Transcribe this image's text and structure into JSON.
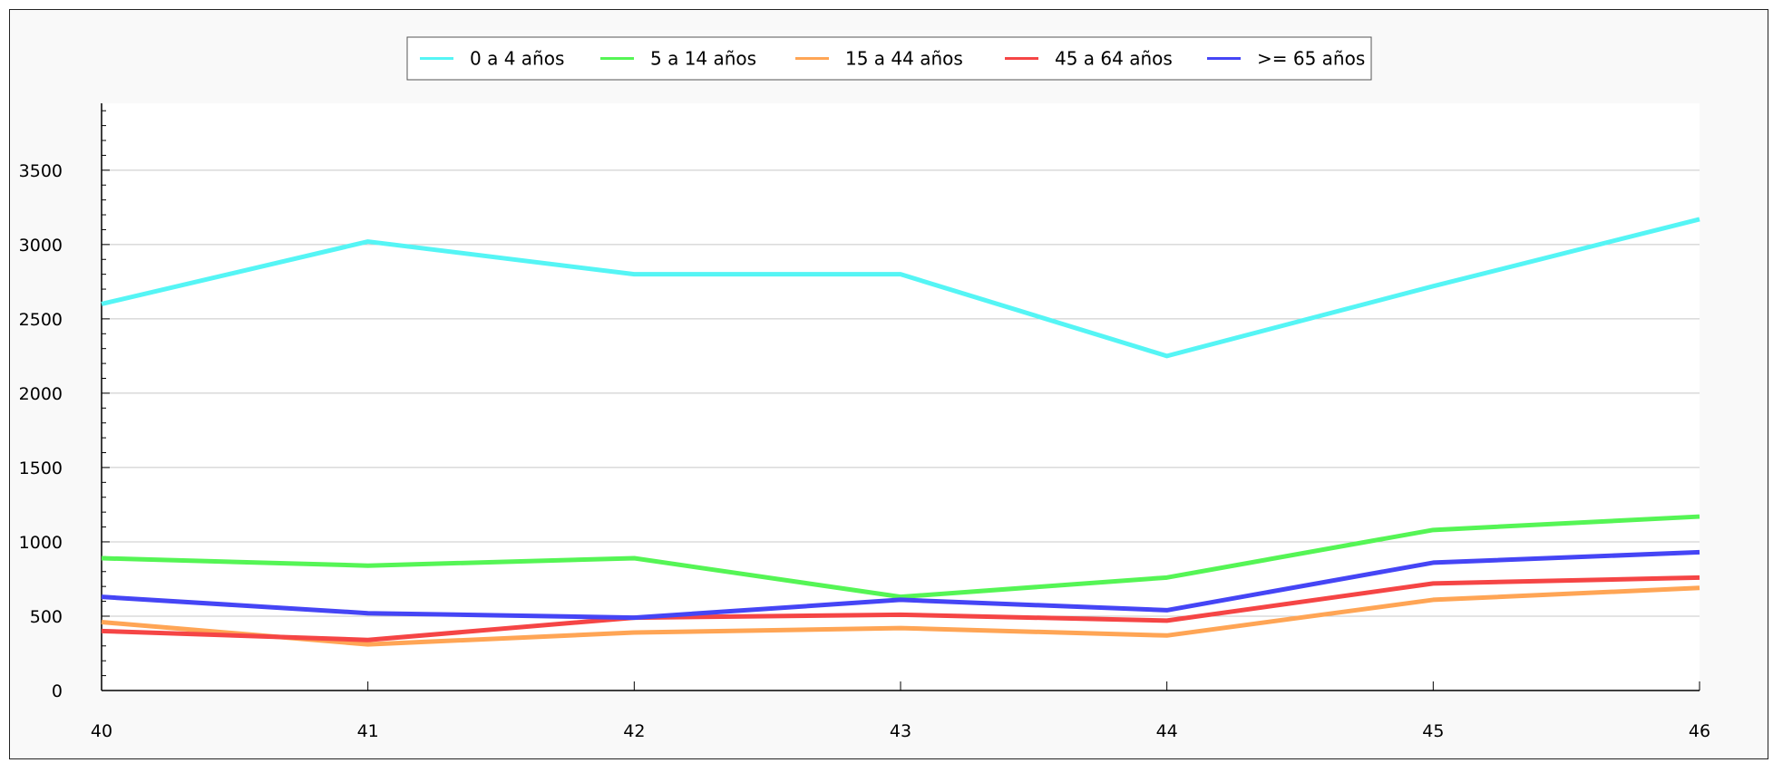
{
  "chart_data": {
    "type": "line",
    "title": "",
    "xlabel": "",
    "ylabel": "",
    "x": [
      40,
      41,
      42,
      43,
      44,
      45,
      46
    ],
    "xlim": [
      40,
      46
    ],
    "ylim": [
      0,
      3950
    ],
    "y_ticks": [
      0,
      500,
      1000,
      1500,
      2000,
      2500,
      3000,
      3500
    ],
    "grid": true,
    "legend_position": "top",
    "series": [
      {
        "name": "0 a 4 años",
        "color": "#55f5f5",
        "values": [
          2600,
          3020,
          2800,
          2800,
          2250,
          2720,
          3170
        ]
      },
      {
        "name": "5 a 14 años",
        "color": "#55f555",
        "values": [
          890,
          840,
          890,
          630,
          760,
          1080,
          1170
        ]
      },
      {
        "name": "15 a 44 años",
        "color": "#ffa555",
        "values": [
          460,
          310,
          390,
          420,
          370,
          610,
          690
        ]
      },
      {
        "name": "45 a 64 años",
        "color": "#f54545",
        "values": [
          400,
          340,
          490,
          510,
          470,
          720,
          760
        ]
      },
      {
        "name": ">= 65 años",
        "color": "#4545f5",
        "values": [
          630,
          520,
          490,
          610,
          540,
          860,
          930
        ]
      }
    ]
  }
}
